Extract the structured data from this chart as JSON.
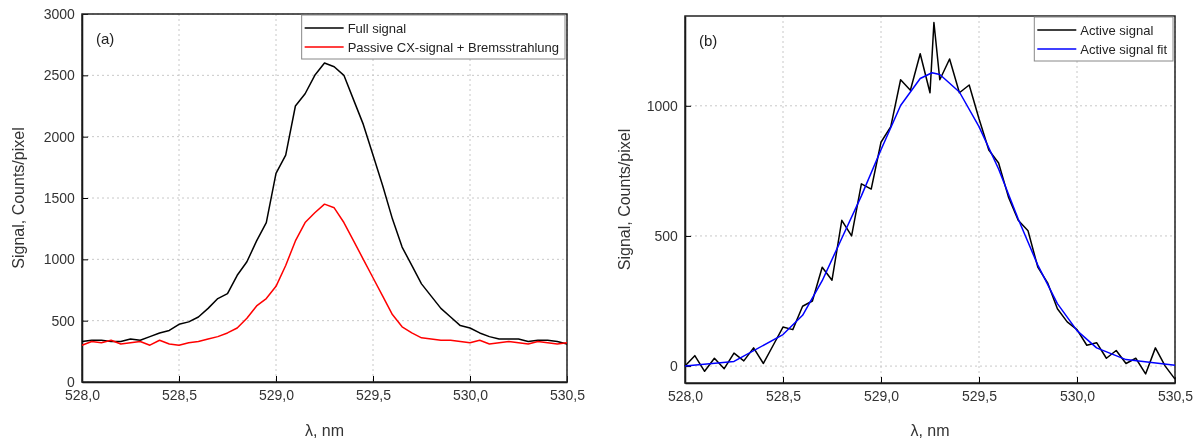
{
  "chart_data": [
    {
      "type": "line",
      "xlabel": "λ, nm",
      "ylabel": "Signal, Counts/pixel",
      "annotations": [
        "(a)"
      ],
      "xlim": [
        528.0,
        530.5
      ],
      "xticks": [
        {
          "value": 528.0,
          "label": "528,0"
        },
        {
          "value": 528.5,
          "label": "528,5"
        },
        {
          "value": 529.0,
          "label": "529,0"
        },
        {
          "value": 529.5,
          "label": "529,5"
        },
        {
          "value": 530.0,
          "label": "530,0"
        },
        {
          "value": 530.5,
          "label": "530,5"
        }
      ],
      "ylim": [
        0,
        3000
      ],
      "yticks": [
        0,
        500,
        1000,
        1500,
        2000,
        2500,
        3000
      ],
      "grid": true,
      "legend": "top right",
      "line_style": "solid",
      "marker": "none",
      "x": [
        528.0,
        528.05,
        528.1,
        528.15,
        528.2,
        528.25,
        528.3,
        528.35,
        528.4,
        528.45,
        528.5,
        528.55,
        528.6,
        528.65,
        528.7,
        528.75,
        528.8,
        528.85,
        528.9,
        528.95,
        529.0,
        529.05,
        529.1,
        529.15,
        529.2,
        529.25,
        529.3,
        529.35,
        529.4,
        529.45,
        529.5,
        529.55,
        529.6,
        529.65,
        529.7,
        529.75,
        529.8,
        529.85,
        529.9,
        529.95,
        530.0,
        530.05,
        530.1,
        530.15,
        530.2,
        530.25,
        530.3,
        530.35,
        530.4,
        530.45,
        530.5
      ],
      "series": [
        {
          "name": "Full signal",
          "color": "#000000",
          "values": [
            330,
            340,
            340,
            330,
            330,
            350,
            340,
            370,
            400,
            420,
            470,
            490,
            530,
            600,
            680,
            720,
            870,
            980,
            1150,
            1300,
            1700,
            1850,
            2250,
            2350,
            2500,
            2600,
            2570,
            2500,
            2300,
            2100,
            1850,
            1600,
            1330,
            1100,
            950,
            800,
            700,
            600,
            530,
            460,
            440,
            400,
            370,
            350,
            350,
            350,
            330,
            340,
            340,
            330,
            310
          ]
        },
        {
          "name": "Passive CX-signal + Bremsstrahlung",
          "color": "#ff0000",
          "values": [
            300,
            330,
            320,
            340,
            310,
            320,
            330,
            300,
            340,
            310,
            300,
            320,
            330,
            350,
            370,
            400,
            440,
            520,
            620,
            680,
            780,
            950,
            1150,
            1300,
            1380,
            1450,
            1420,
            1300,
            1150,
            1000,
            850,
            700,
            550,
            450,
            400,
            360,
            350,
            340,
            340,
            330,
            320,
            340,
            310,
            320,
            330,
            320,
            310,
            330,
            320,
            310,
            320
          ]
        }
      ]
    },
    {
      "type": "line",
      "xlabel": "λ, nm",
      "ylabel": "Signal, Counts/pixel",
      "annotations": [
        "(b)"
      ],
      "xlim": [
        528.0,
        530.5
      ],
      "xticks": [
        {
          "value": 528.0,
          "label": "528,0"
        },
        {
          "value": 528.5,
          "label": "528,5"
        },
        {
          "value": 529.0,
          "label": "529,0"
        },
        {
          "value": 529.5,
          "label": "529,5"
        },
        {
          "value": 530.0,
          "label": "530,0"
        },
        {
          "value": 530.5,
          "label": "530,5"
        }
      ],
      "ylim": [
        -65,
        1345
      ],
      "yticks": [
        0,
        500,
        1000
      ],
      "grid": true,
      "legend": "top right",
      "line_style": "solid",
      "marker": "none",
      "series": [
        {
          "name": "Active signal",
          "color": "#000000",
          "x": [
            528.0,
            528.05,
            528.1,
            528.15,
            528.2,
            528.25,
            528.3,
            528.35,
            528.4,
            528.45,
            528.5,
            528.55,
            528.6,
            528.65,
            528.7,
            528.75,
            528.8,
            528.85,
            528.9,
            528.95,
            529.0,
            529.05,
            529.1,
            529.15,
            529.2,
            529.25,
            529.27,
            529.3,
            529.35,
            529.4,
            529.45,
            529.5,
            529.55,
            529.6,
            529.65,
            529.7,
            529.75,
            529.8,
            529.85,
            529.9,
            529.95,
            530.0,
            530.05,
            530.1,
            530.15,
            530.2,
            530.25,
            530.3,
            530.35,
            530.4,
            530.45,
            530.5
          ],
          "values": [
            0,
            40,
            -20,
            30,
            -10,
            50,
            20,
            70,
            10,
            80,
            150,
            140,
            230,
            250,
            380,
            330,
            560,
            500,
            700,
            680,
            860,
            920,
            1100,
            1060,
            1200,
            1050,
            1320,
            1100,
            1180,
            1050,
            1080,
            950,
            830,
            780,
            650,
            560,
            520,
            380,
            320,
            220,
            170,
            140,
            80,
            90,
            30,
            60,
            10,
            30,
            -30,
            70,
            0,
            -50
          ]
        },
        {
          "name": "Active signal fit",
          "color": "#0000ff",
          "x": [
            528.0,
            528.25,
            528.5,
            528.6,
            528.7,
            528.8,
            528.9,
            529.0,
            529.1,
            529.2,
            529.26,
            529.3,
            529.4,
            529.5,
            529.6,
            529.7,
            529.8,
            529.9,
            530.0,
            530.1,
            530.25,
            530.5
          ],
          "values": [
            0,
            18,
            121,
            195,
            328,
            491,
            654,
            831,
            1001,
            1105,
            1127,
            1120,
            1053,
            920,
            757,
            565,
            388,
            240,
            136,
            70,
            25,
            3
          ]
        }
      ]
    }
  ]
}
